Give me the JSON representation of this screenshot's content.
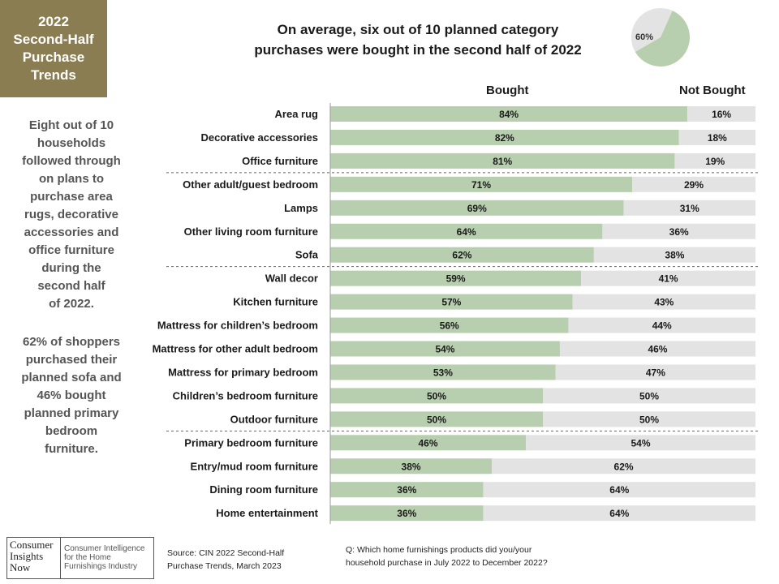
{
  "title_box": {
    "lines": [
      "2022",
      "Second-Half",
      "Purchase",
      "Trends"
    ]
  },
  "side_notes": {
    "paragraph1": [
      "Eight out of 10",
      "households",
      "followed through",
      "on plans to",
      "purchase area",
      "rugs, decorative",
      "accessories and",
      "office furniture",
      "during the",
      "second half",
      "of 2022."
    ],
    "paragraph2": [
      "62% of shoppers",
      "purchased their",
      "planned sofa and",
      "46% bought",
      "planned primary",
      "bedroom",
      "furniture."
    ]
  },
  "headline": {
    "line1": "On average, six out of 10 planned category",
    "line2": "purchases were bought in the second half of 2022"
  },
  "pie": {
    "label": "60%",
    "value": 60,
    "colors": {
      "bought": "#b7cfae",
      "not_bought": "#e3e3e3"
    }
  },
  "chart_data": {
    "type": "bar",
    "stacked": true,
    "orientation": "horizontal",
    "categories": [
      "Area rug",
      "Decorative accessories",
      "Office furniture",
      "Other adult/guest bedroom",
      "Lamps",
      "Other living room furniture",
      "Sofa",
      "Wall decor",
      "Kitchen furniture",
      "Mattress for children’s bedroom",
      "Mattress for other adult bedroom",
      "Mattress for primary bedroom",
      "Children’s bedroom furniture",
      "Outdoor furniture",
      "Primary bedroom furniture",
      "Entry/mud room furniture",
      "Dining room furniture",
      "Home entertainment"
    ],
    "series": [
      {
        "name": "Bought",
        "values": [
          84,
          82,
          81,
          71,
          69,
          64,
          62,
          59,
          57,
          56,
          54,
          53,
          50,
          50,
          46,
          38,
          36,
          36
        ],
        "color": "#b7cfae"
      },
      {
        "name": "Not Bought",
        "values": [
          16,
          18,
          19,
          29,
          31,
          36,
          38,
          41,
          43,
          44,
          46,
          47,
          50,
          50,
          54,
          62,
          64,
          64
        ],
        "color": "#e3e3e3"
      }
    ],
    "value_suffix": "%",
    "group_separators_after": [
      2,
      6,
      13
    ],
    "xlim": [
      0,
      100
    ]
  },
  "footer": {
    "logo_name": [
      "Consumer",
      "Insights",
      "Now"
    ],
    "logo_tagline": [
      "Consumer Intelligence",
      "for the Home",
      "Furnishings Industry"
    ],
    "source": [
      "Source:  CIN 2022 Second-Half",
      "Purchase Trends, March 2023"
    ],
    "question": [
      "Q: Which home furnishings products did you/your",
      "household purchase in July 2022 to December  2022?"
    ]
  }
}
